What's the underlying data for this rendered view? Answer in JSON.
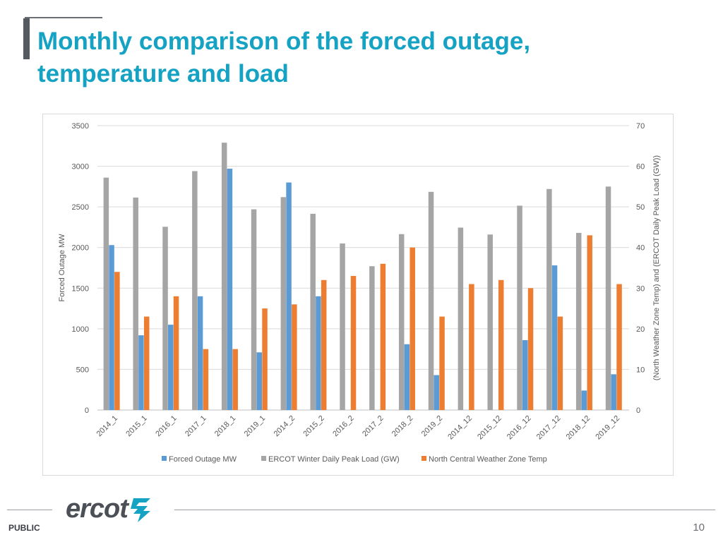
{
  "slide": {
    "title_line1": "Monthly comparison of the forced outage,",
    "title_line2": "temperature and load",
    "logo_text": "ercot",
    "classification": "PUBLIC",
    "page_number": "10"
  },
  "colors": {
    "title": "#16a2c3",
    "outage": "#5b9bd5",
    "load": "#a5a5a5",
    "temp": "#ed7d31"
  },
  "chart_data": {
    "type": "bar",
    "title": "",
    "categories": [
      "2014_1",
      "2015_1",
      "2016_1",
      "2017_1",
      "2018_1",
      "2019_1",
      "2014_2",
      "2015_2",
      "2016_2",
      "2017_2",
      "2018_2",
      "2019_2",
      "2014_12",
      "2015_12",
      "2016_12",
      "2017_12",
      "2018_12",
      "2019_12"
    ],
    "series": [
      {
        "name": "Forced Outage MW",
        "axis": "left",
        "color": "#5b9bd5",
        "values": [
          2030,
          920,
          1050,
          1400,
          2970,
          710,
          2800,
          1400,
          0,
          0,
          810,
          430,
          0,
          0,
          860,
          1780,
          240,
          440
        ]
      },
      {
        "name": "ERCOT Winter Daily Peak Load (GW)",
        "axis": "right",
        "color": "#a5a5a5",
        "values": [
          57.2,
          52.3,
          45.1,
          58.8,
          65.8,
          49.4,
          52.4,
          48.3,
          41,
          35.4,
          43.3,
          53.7,
          44.9,
          43.2,
          50.3,
          54.4,
          43.6,
          55
        ]
      },
      {
        "name": "North Central Weather Zone Temp",
        "axis": "right",
        "color": "#ed7d31",
        "values": [
          34,
          23,
          28,
          15,
          15,
          25,
          26,
          32,
          33,
          36,
          40,
          23,
          31,
          32,
          30,
          23,
          43,
          31
        ]
      }
    ],
    "y_left": {
      "label": "Forced Outage MW",
      "min": 0,
      "max": 3500,
      "ticks": [
        0,
        500,
        1000,
        1500,
        2000,
        2500,
        3000,
        3500
      ]
    },
    "y_right": {
      "label": "(North Weather Zone Temp) and (ERCOT Daily Peak Load (GW))",
      "min": 0,
      "max": 70,
      "ticks": [
        0,
        10,
        20,
        30,
        40,
        50,
        60,
        70
      ]
    },
    "gridlines": true,
    "legend_position": "bottom"
  }
}
